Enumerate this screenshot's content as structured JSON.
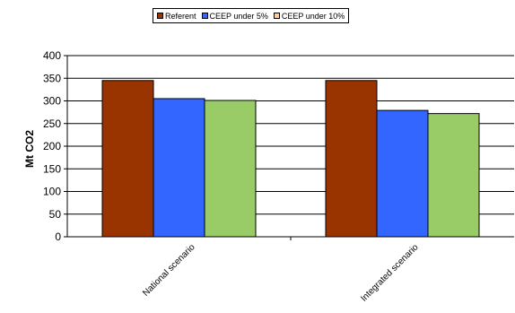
{
  "chart_data": {
    "type": "bar",
    "categories": [
      "National scenario",
      "Integrated scenario"
    ],
    "series": [
      {
        "name": "Referent",
        "values": [
          345,
          345
        ],
        "color": "#993300"
      },
      {
        "name": "CEEP under 5%",
        "values": [
          305,
          279
        ],
        "color": "#3366FF"
      },
      {
        "name": "CEEP under 10%",
        "values": [
          301,
          272
        ],
        "color": "#99CC66"
      }
    ],
    "legend_colors": [
      "#993300",
      "#3366FF",
      "#FFCC99"
    ],
    "xlabel": "",
    "ylabel": "Mt CO2",
    "ylim": [
      0,
      400
    ],
    "yticks": [
      0,
      50,
      100,
      150,
      200,
      250,
      300,
      350,
      400
    ],
    "grid": true,
    "legend_position": "top-center"
  }
}
